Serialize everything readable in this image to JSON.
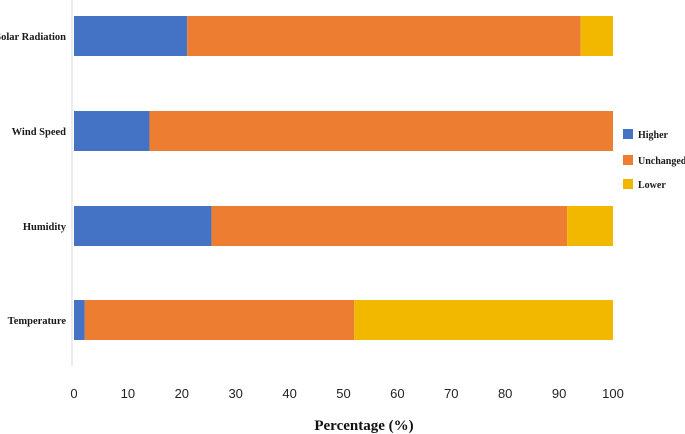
{
  "chart_data": {
    "type": "bar",
    "orientation": "horizontal",
    "stacked": true,
    "title": "",
    "xlabel": "Percentage (%)",
    "ylabel": "",
    "xlim": [
      0,
      100
    ],
    "xticks": [
      "0",
      "10",
      "20",
      "30",
      "40",
      "50",
      "60",
      "70",
      "80",
      "90",
      "100"
    ],
    "categories": [
      "Solar Radiation",
      "Wind Speed",
      "Humidity",
      "Temperature"
    ],
    "series": [
      {
        "name": "Higher",
        "color": "#4472C4",
        "values": [
          21,
          14,
          25.5,
          2
        ]
      },
      {
        "name": "Unchanged",
        "color": "#ED7D31",
        "values": [
          73,
          86,
          66,
          50
        ]
      },
      {
        "name": "Lower",
        "color": "#F2B800",
        "values": [
          6,
          0,
          8.5,
          48
        ]
      }
    ],
    "legend_position": "right",
    "grid": false
  }
}
